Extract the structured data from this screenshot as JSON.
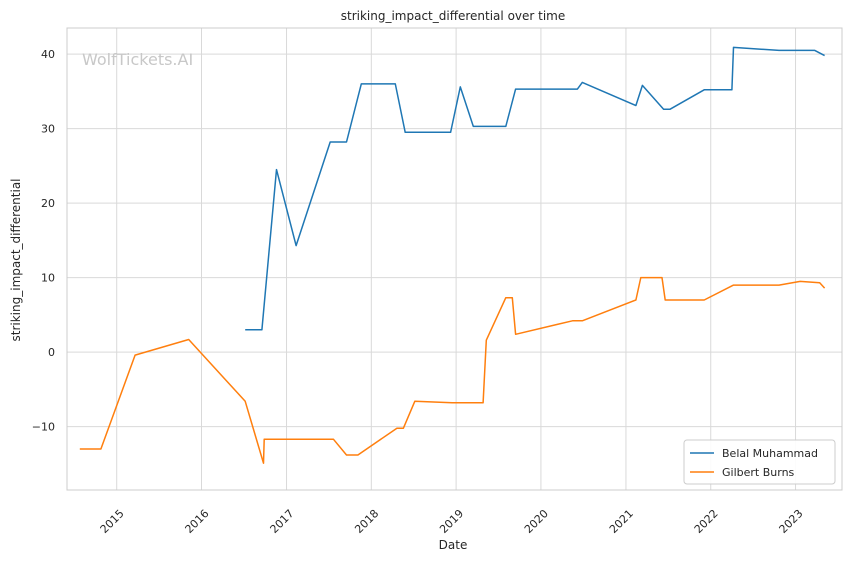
{
  "watermark": "WolfTickets.AI",
  "chart_data": {
    "type": "line",
    "title": "striking_impact_differential over time",
    "xlabel": "Date",
    "ylabel": "striking_impact_differential",
    "x_ticks": [
      "2015",
      "2016",
      "2017",
      "2018",
      "2019",
      "2020",
      "2021",
      "2022",
      "2023"
    ],
    "y_ticks": [
      -10,
      0,
      10,
      20,
      30,
      40
    ],
    "xlim": [
      "2014-06-01",
      "2023-07-20"
    ],
    "ylim": [
      -18.5,
      43.5
    ],
    "grid": true,
    "legend_position": "bottom-right",
    "series": [
      {
        "name": "Belal Muhammad",
        "color": "#1f77b4",
        "points": [
          [
            "2016-07-07",
            3.0
          ],
          [
            "2016-09-17",
            3.0
          ],
          [
            "2016-11-19",
            24.5
          ],
          [
            "2017-02-11",
            14.3
          ],
          [
            "2017-07-08",
            28.2
          ],
          [
            "2017-09-16",
            28.2
          ],
          [
            "2017-11-19",
            36.0
          ],
          [
            "2018-04-14",
            36.0
          ],
          [
            "2018-05-27",
            29.5
          ],
          [
            "2018-12-08",
            29.5
          ],
          [
            "2019-01-19",
            35.6
          ],
          [
            "2019-03-16",
            30.3
          ],
          [
            "2019-08-03",
            30.3
          ],
          [
            "2019-09-14",
            35.3
          ],
          [
            "2020-06-06",
            35.3
          ],
          [
            "2020-06-27",
            36.2
          ],
          [
            "2021-02-13",
            33.1
          ],
          [
            "2021-03-13",
            35.8
          ],
          [
            "2021-06-12",
            32.6
          ],
          [
            "2021-07-10",
            32.6
          ],
          [
            "2021-12-04",
            35.2
          ],
          [
            "2022-04-02",
            35.2
          ],
          [
            "2022-04-09",
            40.9
          ],
          [
            "2022-10-22",
            40.5
          ],
          [
            "2023-03-25",
            40.5
          ],
          [
            "2023-05-06",
            39.8
          ]
        ]
      },
      {
        "name": "Gilbert Burns",
        "color": "#ff7f0e",
        "points": [
          [
            "2014-07-26",
            -13.0
          ],
          [
            "2014-10-25",
            -13.0
          ],
          [
            "2015-03-21",
            -0.4
          ],
          [
            "2015-11-07",
            1.7
          ],
          [
            "2016-07-07",
            -6.6
          ],
          [
            "2016-09-24",
            -14.9
          ],
          [
            "2016-09-24",
            -14.9
          ],
          [
            "2016-09-27",
            -11.7
          ],
          [
            "2017-07-22",
            -11.7
          ],
          [
            "2017-09-16",
            -13.8
          ],
          [
            "2017-11-04",
            -13.8
          ],
          [
            "2018-04-21",
            -10.2
          ],
          [
            "2018-05-19",
            -10.2
          ],
          [
            "2018-07-07",
            -6.6
          ],
          [
            "2018-12-15",
            -6.8
          ],
          [
            "2019-04-27",
            -6.8
          ],
          [
            "2019-05-11",
            1.6
          ],
          [
            "2019-08-03",
            7.3
          ],
          [
            "2019-08-31",
            7.3
          ],
          [
            "2019-09-14",
            2.4
          ],
          [
            "2020-03-07",
            3.7
          ],
          [
            "2020-05-16",
            4.2
          ],
          [
            "2020-06-27",
            4.2
          ],
          [
            "2021-02-13",
            7.0
          ],
          [
            "2021-03-06",
            10.0
          ],
          [
            "2021-06-05",
            10.0
          ],
          [
            "2021-06-19",
            7.0
          ],
          [
            "2021-12-04",
            7.0
          ],
          [
            "2022-04-09",
            9.0
          ],
          [
            "2022-10-22",
            9.0
          ],
          [
            "2023-01-21",
            9.5
          ],
          [
            "2023-04-15",
            9.3
          ],
          [
            "2023-05-06",
            8.6
          ]
        ]
      }
    ]
  }
}
